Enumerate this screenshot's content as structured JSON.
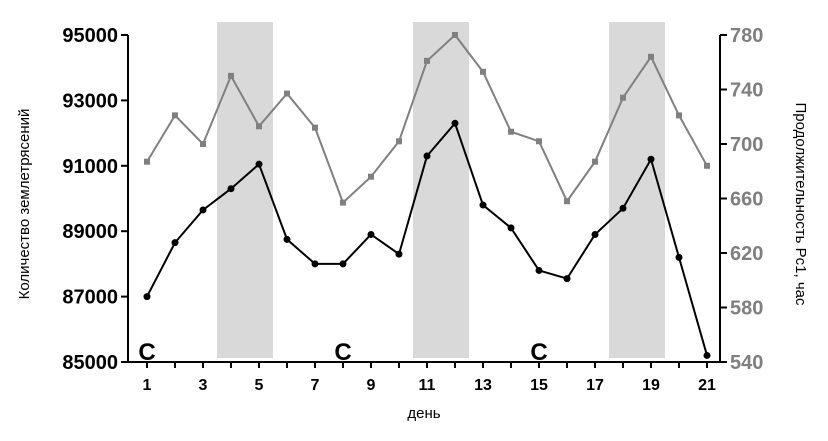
{
  "chart_data": {
    "type": "line",
    "xlabel": "день",
    "ylabel_left": "Количество землетрясений",
    "ylabel_right": "Продолжительность Pc1, час",
    "xlim": [
      1,
      21
    ],
    "ylim_left": [
      85000,
      95000
    ],
    "ylim_right": [
      540,
      780
    ],
    "x_ticks": [
      1,
      3,
      5,
      7,
      9,
      11,
      13,
      15,
      17,
      19,
      21
    ],
    "y_left_ticks": [
      "85000",
      "87000",
      "89000",
      "91000",
      "93000",
      "95000"
    ],
    "y_right_ticks": [
      "540",
      "580",
      "620",
      "660",
      "700",
      "740",
      "780"
    ],
    "shaded_ranges": [
      [
        3.5,
        5.5
      ],
      [
        10.5,
        12.5
      ],
      [
        17.5,
        19.5
      ]
    ],
    "annotations": [
      {
        "text": "С",
        "x": 1
      },
      {
        "text": "С",
        "x": 8
      },
      {
        "text": "С",
        "x": 15
      }
    ],
    "grid": false,
    "legend": "none",
    "x": [
      1,
      2,
      3,
      4,
      5,
      6,
      7,
      8,
      9,
      10,
      11,
      12,
      13,
      14,
      15,
      16,
      17,
      18,
      19,
      20,
      21
    ],
    "series": [
      {
        "axis": "left",
        "color": "#000000",
        "marker": "circle",
        "values": [
          87000,
          88650,
          89650,
          90300,
          91050,
          88750,
          88000,
          88000,
          88900,
          88300,
          91300,
          92300,
          89800,
          89100,
          87800,
          87550,
          88900,
          89700,
          91200,
          88200,
          85200
        ]
      },
      {
        "axis": "right",
        "color": "#808080",
        "marker": "square",
        "values": [
          687,
          721,
          700,
          750,
          713,
          737,
          712,
          657,
          676,
          702,
          761,
          780,
          753,
          709,
          702,
          658,
          687,
          734,
          764,
          721,
          684
        ]
      }
    ]
  }
}
